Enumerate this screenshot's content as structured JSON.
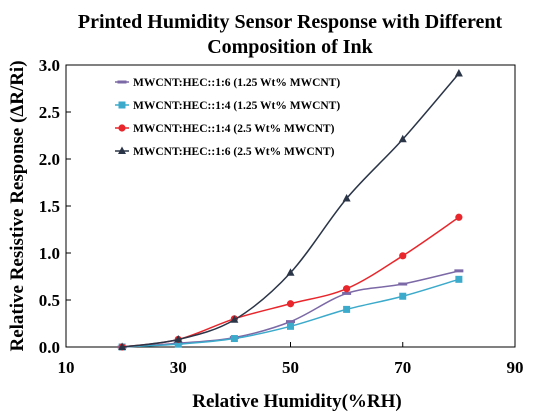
{
  "chart_data": {
    "type": "line",
    "title_lines": [
      "Printed Humidity Sensor Response with Different",
      "Composition of Ink"
    ],
    "xlabel": "Relative Humidity(%RH)",
    "ylabel": "Relative Resistive Response (ΔR/Ri)",
    "xlim": [
      10,
      90
    ],
    "ylim": [
      0,
      3.0
    ],
    "x_ticks": [
      "10",
      "30",
      "50",
      "70",
      "90"
    ],
    "y_ticks": [
      "0.0",
      "0.5",
      "1.0",
      "1.5",
      "2.0",
      "2.5",
      "3.0"
    ],
    "grid": false,
    "legend_position": "top-left",
    "x": [
      20,
      30,
      40,
      50,
      60,
      70,
      80
    ],
    "series": [
      {
        "name": "MWCNT:HEC::1:6 (1.25 Wt% MWCNT)",
        "color": "#7B68A6",
        "marker": "dash",
        "values": [
          0.0,
          0.04,
          0.1,
          0.27,
          0.57,
          0.67,
          0.81
        ]
      },
      {
        "name": "MWCNT:HEC::1:4 (1.25 Wt% MWCNT)",
        "color": "#3BAACB",
        "marker": "square",
        "values": [
          0.0,
          0.03,
          0.09,
          0.22,
          0.4,
          0.54,
          0.72
        ]
      },
      {
        "name": "MWCNT:HEC::1:4 (2.5 Wt% MWCNT)",
        "color": "#E8262B",
        "marker": "circle",
        "values": [
          0.0,
          0.08,
          0.3,
          0.46,
          0.62,
          0.97,
          1.38
        ]
      },
      {
        "name": "MWCNT:HEC::1:6 (2.5 Wt% MWCNT)",
        "color": "#2B3548",
        "marker": "triangle",
        "values": [
          0.0,
          0.08,
          0.29,
          0.79,
          1.58,
          2.21,
          2.91
        ]
      }
    ]
  }
}
